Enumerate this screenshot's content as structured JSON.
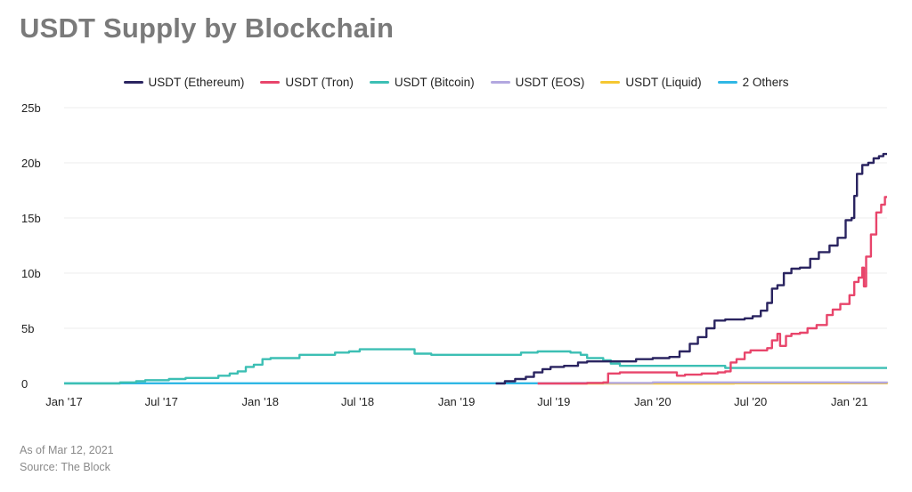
{
  "title": "USDT Supply by Blockchain",
  "footer": {
    "as_of": "As of Mar 12, 2021",
    "source": "Source: The Block"
  },
  "chart_data": {
    "type": "line",
    "title": "USDT Supply by Blockchain",
    "xlabel": "",
    "ylabel": "",
    "ylim": [
      0,
      25
    ],
    "y_unit": "b",
    "y_ticks": [
      0,
      5,
      10,
      15,
      20,
      25
    ],
    "y_tick_labels": [
      "0",
      "5b",
      "10b",
      "15b",
      "20b",
      "25b"
    ],
    "x_ticks": [
      "2017-01-01",
      "2017-07-01",
      "2018-01-01",
      "2018-07-01",
      "2019-01-01",
      "2019-07-01",
      "2020-01-01",
      "2020-07-01",
      "2021-01-01"
    ],
    "x_tick_labels": [
      "Jan '17",
      "Jul '17",
      "Jan '18",
      "Jul '18",
      "Jan '19",
      "Jul '19",
      "Jan '20",
      "Jul '20",
      "Jan '21"
    ],
    "xlim": [
      "2017-01-01",
      "2021-03-12"
    ],
    "grid": true,
    "legend_position": "top-center",
    "series": [
      {
        "name": "USDT (Ethereum)",
        "color": "#2a2460",
        "points": [
          [
            "2019-03-15",
            0
          ],
          [
            "2019-04-01",
            0.2
          ],
          [
            "2019-04-20",
            0.4
          ],
          [
            "2019-05-10",
            0.6
          ],
          [
            "2019-05-25",
            1.0
          ],
          [
            "2019-06-10",
            1.3
          ],
          [
            "2019-06-25",
            1.5
          ],
          [
            "2019-07-20",
            1.6
          ],
          [
            "2019-08-15",
            1.9
          ],
          [
            "2019-09-01",
            2.0
          ],
          [
            "2019-10-01",
            2.0
          ],
          [
            "2019-11-01",
            2.0
          ],
          [
            "2019-12-01",
            2.2
          ],
          [
            "2020-01-01",
            2.3
          ],
          [
            "2020-02-01",
            2.4
          ],
          [
            "2020-02-20",
            2.9
          ],
          [
            "2020-03-10",
            3.6
          ],
          [
            "2020-03-25",
            4.2
          ],
          [
            "2020-04-10",
            5.0
          ],
          [
            "2020-04-25",
            5.7
          ],
          [
            "2020-05-15",
            5.8
          ],
          [
            "2020-06-01",
            5.8
          ],
          [
            "2020-06-20",
            5.9
          ],
          [
            "2020-07-05",
            6.1
          ],
          [
            "2020-07-20",
            6.6
          ],
          [
            "2020-08-01",
            7.3
          ],
          [
            "2020-08-10",
            8.6
          ],
          [
            "2020-08-20",
            8.9
          ],
          [
            "2020-09-01",
            10.0
          ],
          [
            "2020-09-15",
            10.4
          ],
          [
            "2020-10-01",
            10.5
          ],
          [
            "2020-10-20",
            11.3
          ],
          [
            "2020-11-05",
            11.9
          ],
          [
            "2020-11-25",
            12.5
          ],
          [
            "2020-12-10",
            13.2
          ],
          [
            "2020-12-25",
            14.8
          ],
          [
            "2021-01-05",
            15.0
          ],
          [
            "2021-01-10",
            17.0
          ],
          [
            "2021-01-15",
            19.0
          ],
          [
            "2021-01-25",
            19.8
          ],
          [
            "2021-02-05",
            20.0
          ],
          [
            "2021-02-15",
            20.4
          ],
          [
            "2021-02-25",
            20.6
          ],
          [
            "2021-03-05",
            20.8
          ],
          [
            "2021-03-12",
            20.8
          ]
        ]
      },
      {
        "name": "USDT (Tron)",
        "color": "#e8456b",
        "points": [
          [
            "2019-06-01",
            0.0
          ],
          [
            "2019-09-01",
            0.05
          ],
          [
            "2019-10-01",
            0.1
          ],
          [
            "2019-10-10",
            0.9
          ],
          [
            "2019-11-01",
            1.0
          ],
          [
            "2019-12-01",
            1.0
          ],
          [
            "2020-01-01",
            1.0
          ],
          [
            "2020-02-01",
            1.0
          ],
          [
            "2020-02-15",
            0.7
          ],
          [
            "2020-03-01",
            0.8
          ],
          [
            "2020-04-01",
            0.9
          ],
          [
            "2020-05-01",
            1.0
          ],
          [
            "2020-05-15",
            1.1
          ],
          [
            "2020-05-25",
            1.9
          ],
          [
            "2020-06-05",
            2.2
          ],
          [
            "2020-06-20",
            2.8
          ],
          [
            "2020-07-01",
            3.0
          ],
          [
            "2020-07-20",
            3.0
          ],
          [
            "2020-08-01",
            3.2
          ],
          [
            "2020-08-10",
            3.9
          ],
          [
            "2020-08-20",
            4.5
          ],
          [
            "2020-08-25",
            3.4
          ],
          [
            "2020-09-05",
            4.3
          ],
          [
            "2020-09-15",
            4.5
          ],
          [
            "2020-10-01",
            4.6
          ],
          [
            "2020-10-15",
            5.0
          ],
          [
            "2020-11-01",
            5.3
          ],
          [
            "2020-11-20",
            6.2
          ],
          [
            "2020-12-01",
            6.7
          ],
          [
            "2020-12-15",
            7.2
          ],
          [
            "2021-01-01",
            8.0
          ],
          [
            "2021-01-10",
            9.2
          ],
          [
            "2021-01-18",
            9.6
          ],
          [
            "2021-01-25",
            10.5
          ],
          [
            "2021-01-28",
            8.8
          ],
          [
            "2021-02-01",
            11.5
          ],
          [
            "2021-02-10",
            13.5
          ],
          [
            "2021-02-20",
            15.5
          ],
          [
            "2021-03-01",
            16.2
          ],
          [
            "2021-03-08",
            16.9
          ],
          [
            "2021-03-12",
            16.9
          ]
        ]
      },
      {
        "name": "USDT (Bitcoin)",
        "color": "#3cbfb4",
        "points": [
          [
            "2017-01-01",
            0.0
          ],
          [
            "2017-03-01",
            0.0
          ],
          [
            "2017-04-15",
            0.1
          ],
          [
            "2017-05-15",
            0.2
          ],
          [
            "2017-06-01",
            0.3
          ],
          [
            "2017-07-15",
            0.4
          ],
          [
            "2017-08-15",
            0.5
          ],
          [
            "2017-10-01",
            0.5
          ],
          [
            "2017-10-15",
            0.7
          ],
          [
            "2017-11-05",
            0.9
          ],
          [
            "2017-11-20",
            1.1
          ],
          [
            "2017-12-05",
            1.5
          ],
          [
            "2017-12-20",
            1.7
          ],
          [
            "2018-01-05",
            2.2
          ],
          [
            "2018-01-20",
            2.3
          ],
          [
            "2018-02-15",
            2.3
          ],
          [
            "2018-03-15",
            2.6
          ],
          [
            "2018-04-01",
            2.6
          ],
          [
            "2018-05-20",
            2.8
          ],
          [
            "2018-06-15",
            2.9
          ],
          [
            "2018-07-05",
            3.1
          ],
          [
            "2018-08-01",
            3.1
          ],
          [
            "2018-09-10",
            3.1
          ],
          [
            "2018-10-15",
            2.7
          ],
          [
            "2018-11-15",
            2.6
          ],
          [
            "2019-01-01",
            2.6
          ],
          [
            "2019-03-01",
            2.6
          ],
          [
            "2019-05-01",
            2.8
          ],
          [
            "2019-06-01",
            2.9
          ],
          [
            "2019-08-01",
            2.8
          ],
          [
            "2019-08-20",
            2.6
          ],
          [
            "2019-09-01",
            2.3
          ],
          [
            "2019-10-01",
            2.1
          ],
          [
            "2019-10-15",
            1.8
          ],
          [
            "2019-11-01",
            1.6
          ],
          [
            "2020-01-01",
            1.6
          ],
          [
            "2020-03-01",
            1.6
          ],
          [
            "2020-05-01",
            1.6
          ],
          [
            "2020-05-15",
            1.4
          ],
          [
            "2020-07-01",
            1.4
          ],
          [
            "2020-10-01",
            1.4
          ],
          [
            "2021-01-01",
            1.4
          ],
          [
            "2021-03-12",
            1.4
          ]
        ]
      },
      {
        "name": "USDT (EOS)",
        "color": "#b3a8e0",
        "points": [
          [
            "2019-06-01",
            0.0
          ],
          [
            "2019-08-01",
            0.05
          ],
          [
            "2020-01-01",
            0.1
          ],
          [
            "2020-07-01",
            0.1
          ],
          [
            "2021-01-01",
            0.08
          ],
          [
            "2021-03-12",
            0.05
          ]
        ]
      },
      {
        "name": "USDT (Liquid)",
        "color": "#f5c732",
        "points": [
          [
            "2019-08-01",
            0.0
          ],
          [
            "2020-06-01",
            0.02
          ],
          [
            "2021-03-12",
            0.03
          ]
        ]
      },
      {
        "name": "2 Others",
        "color": "#2fb7e5",
        "points": [
          [
            "2017-01-01",
            0.02
          ],
          [
            "2021-03-12",
            0.02
          ]
        ]
      }
    ]
  }
}
